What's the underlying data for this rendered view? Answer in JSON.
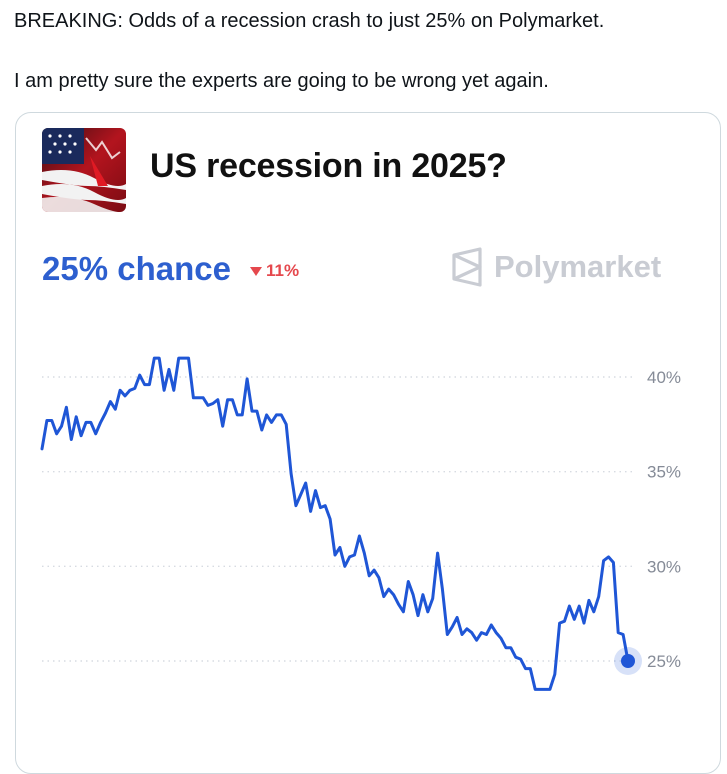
{
  "tweet": {
    "line1": "BREAKING: Odds of a recession crash to just 25% on Polymarket.",
    "line2": "I am pretty sure the experts are going to be wrong yet again."
  },
  "card": {
    "title": "US recession in 2025?",
    "chance_text": "25% chance",
    "change_text": "11%",
    "brand": "Polymarket",
    "thumbnail_icon": "us-flag-falling-chart-icon",
    "colors": {
      "accent": "#2d5fcf",
      "down": "#e5484d",
      "brand_gray": "#c9ccd3",
      "line": "#1f56d6"
    }
  },
  "chart_data": {
    "type": "line",
    "ylim": [
      22,
      41
    ],
    "yticks": [
      40,
      35,
      30,
      25
    ],
    "ytick_labels": [
      "40%",
      "35%",
      "30%",
      "25%"
    ],
    "grid": true,
    "series": [
      {
        "values": [
          36.2,
          37.7,
          37.7,
          37.0,
          37.4,
          38.4,
          36.7,
          37.9,
          36.9,
          37.6,
          37.6,
          37.0,
          37.6,
          38.1,
          38.7,
          38.3,
          39.3,
          39.0,
          39.3,
          39.4,
          40.1,
          39.6,
          39.6,
          41.0,
          41.0,
          39.3,
          40.4,
          39.3,
          41.0,
          41.0,
          41.0,
          38.9,
          38.9,
          38.9,
          38.5,
          38.6,
          38.8,
          37.4,
          38.8,
          38.8,
          38.0,
          38.0,
          39.9,
          38.2,
          38.2,
          37.2,
          38.0,
          37.6,
          38.0,
          38.0,
          37.5,
          34.9,
          33.2,
          33.8,
          34.4,
          32.9,
          34.0,
          33.1,
          33.2,
          32.5,
          30.6,
          31.0,
          30.0,
          30.5,
          30.6,
          31.6,
          30.7,
          29.5,
          29.8,
          29.4,
          28.4,
          28.8,
          28.5,
          28.0,
          27.6,
          29.2,
          28.5,
          27.4,
          28.5,
          27.6,
          28.3,
          30.7,
          28.8,
          26.4,
          26.8,
          27.3,
          26.4,
          26.7,
          26.5,
          26.1,
          26.5,
          26.4,
          26.9,
          26.5,
          26.2,
          25.7,
          25.7,
          25.2,
          25.1,
          24.6,
          24.6,
          23.5,
          23.5,
          23.5,
          23.5,
          24.3,
          27.0,
          27.1,
          27.9,
          27.2,
          27.9,
          27.0,
          28.2,
          27.6,
          28.4,
          30.3,
          30.5,
          30.2,
          26.5,
          26.4,
          25.0
        ]
      }
    ]
  }
}
